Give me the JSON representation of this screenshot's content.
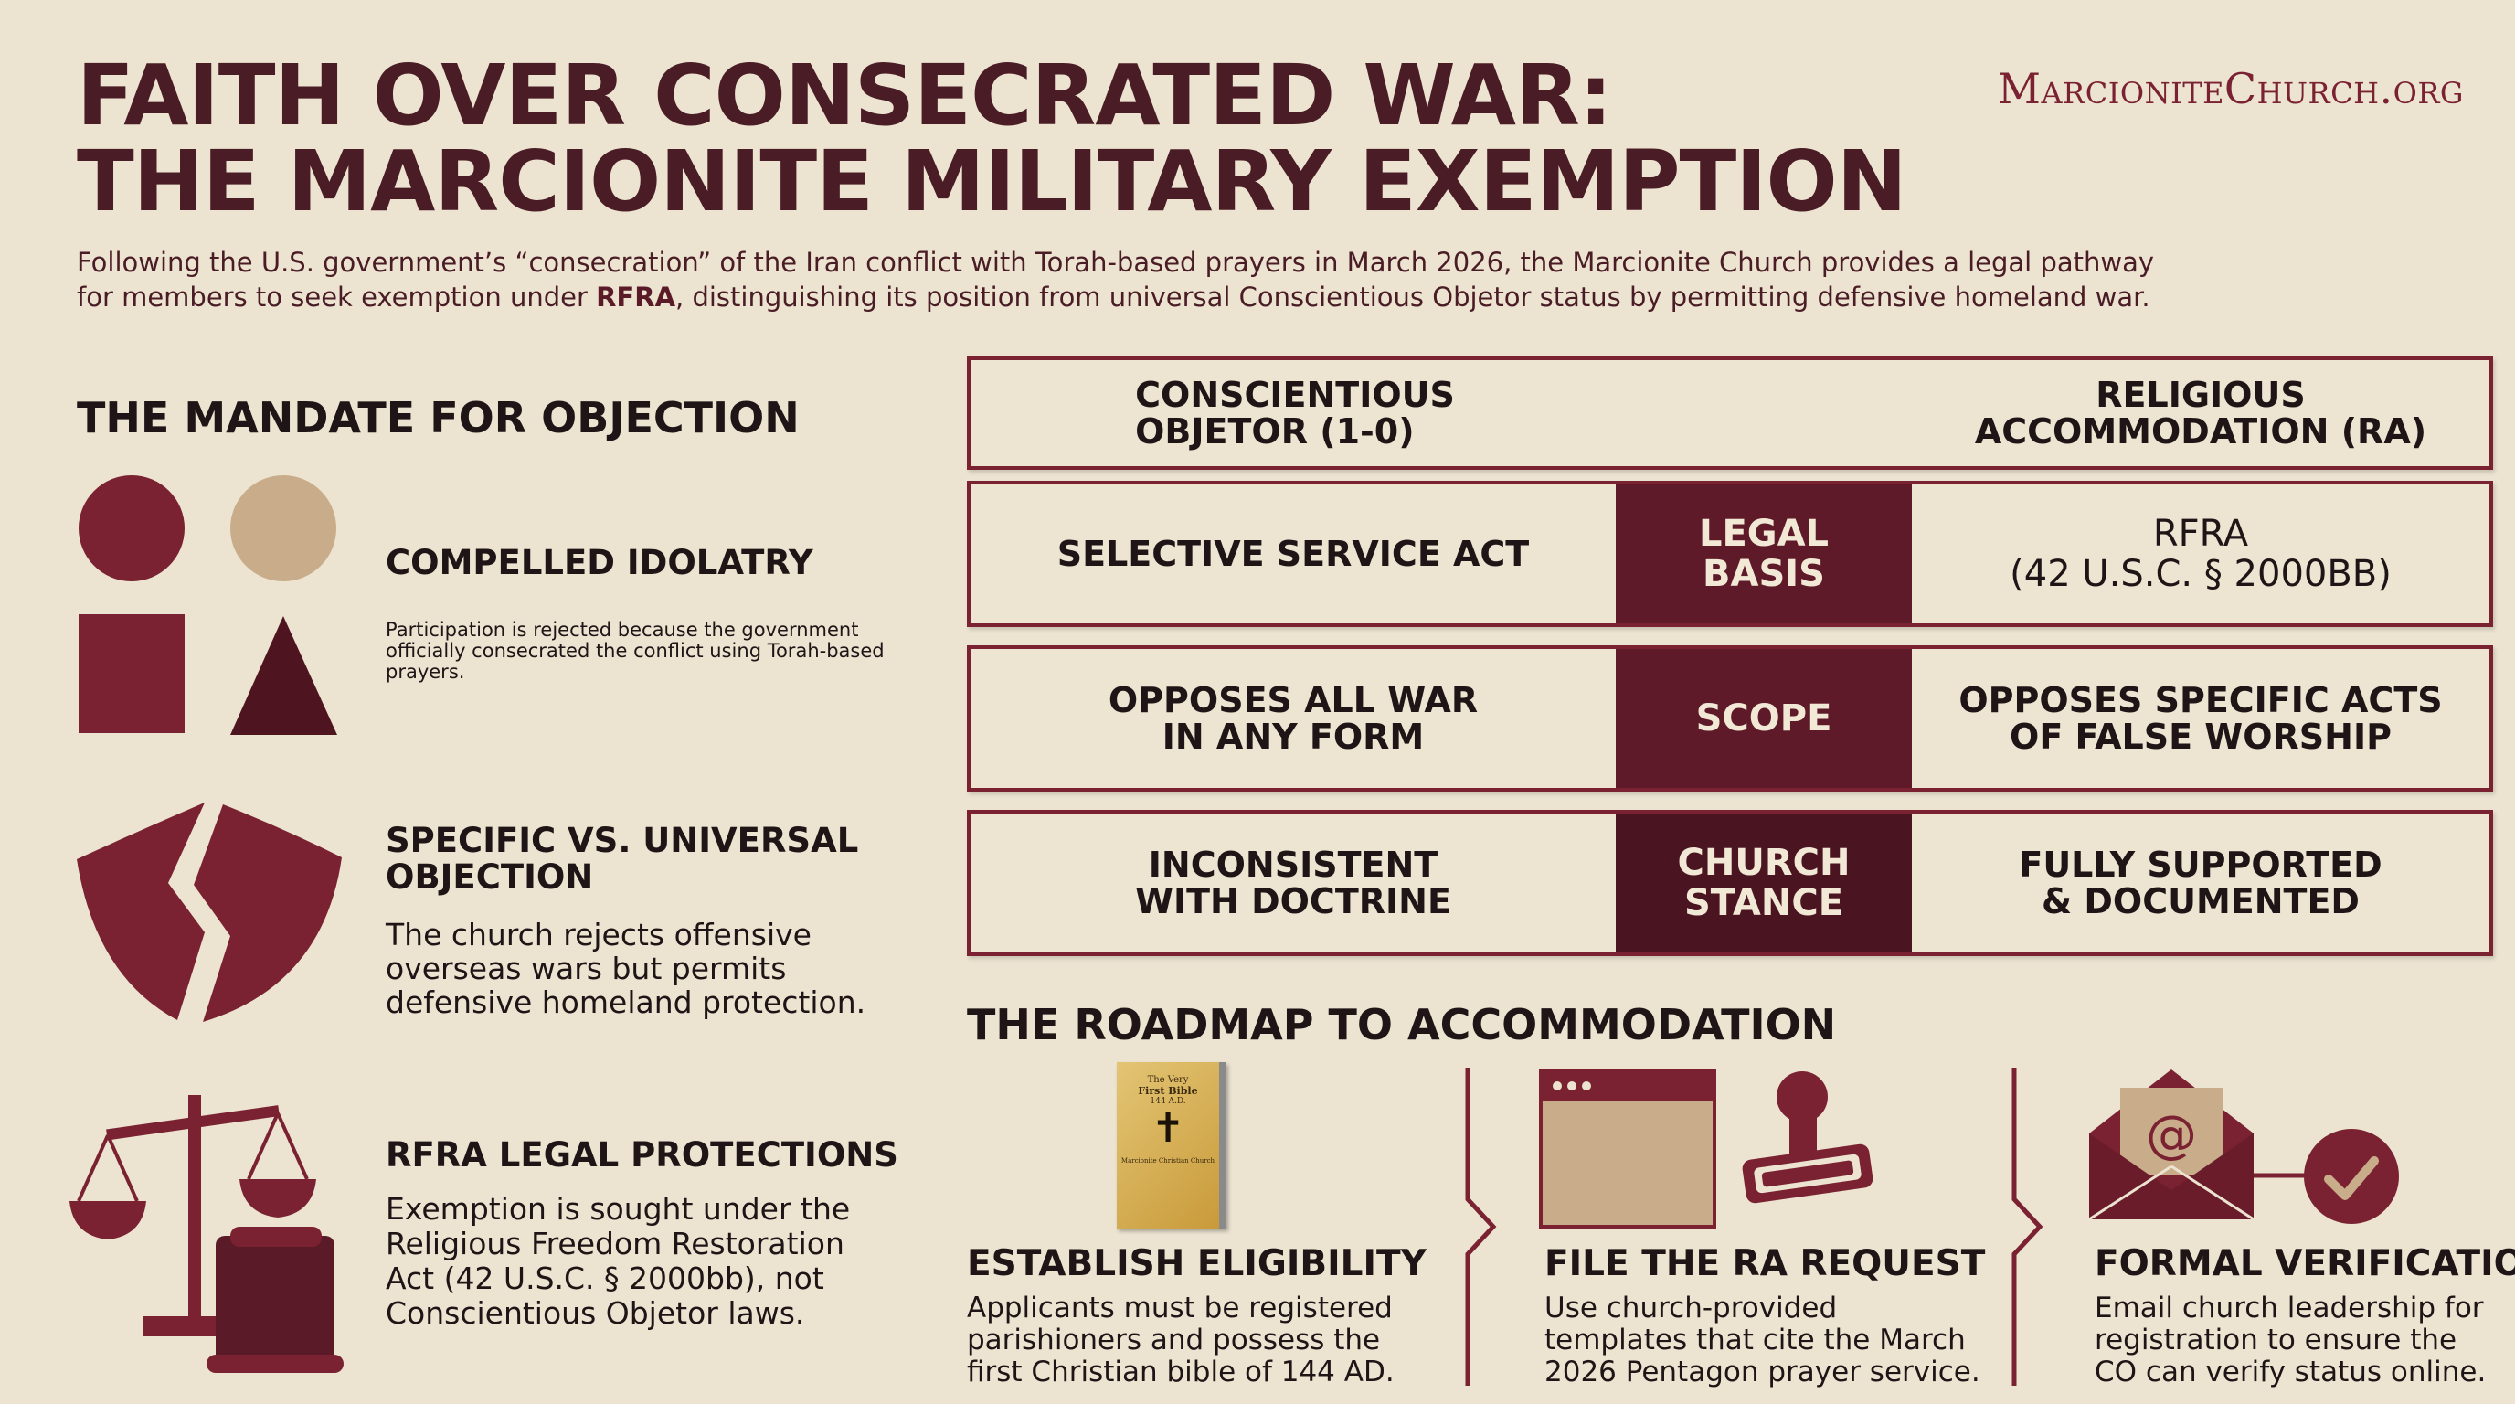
{
  "header": {
    "title_line1": "FAITH OVER CONSECRATED WAR:",
    "title_line2": "THE MARCIONITE MILITARY EXEMPTION",
    "brand": "MarcioniteChurch.org",
    "subtitle_line1": "Following the U.S. government’s “consecration” of the Iran conflict with Torah-based prayers in March 2026, the Marcionite Church provides a legal pathway",
    "subtitle_line2_pre": "for members to seek exemption under ",
    "subtitle_line2_bold": "RFRA",
    "subtitle_line2_post": ", distinguishing its position from universal Conscientious Objetor status by permitting defensive homeland war."
  },
  "mandate": {
    "heading": "THE MANDATE FOR OBJECTION",
    "items": [
      {
        "title": "COMPELLED IDOLATRY",
        "desc": "Participation is rejected because the government officially consecrated the conflict using Torah-based prayers."
      },
      {
        "title": "SPECIFIC VS. UNIVERSAL OBJECTION",
        "desc": "The church rejects offensive overseas wars but permits defensive homeland protection."
      },
      {
        "title": "RFRA LEGAL PROTECTIONS",
        "desc": "Exemption is sought under the Religious Freedom Restoration Act (42 U.S.C. § 2000bb), not Conscientious Objetor laws."
      }
    ]
  },
  "comparison": {
    "left_header_l1": "CONSCIENTIOUS",
    "left_header_l2": "OBJETOR (1-0)",
    "right_header_l1": "RELIGIOUS",
    "right_header_l2": "ACCOMMODATION (RA)",
    "rows": [
      {
        "left_l1": "SELECTIVE SERVICE ACT",
        "left_l2": "",
        "mid_l1": "LEGAL",
        "mid_l2": "BASIS",
        "right_l1": "RFRA",
        "right_l2": "(42 U.S.C. § 2000BB)"
      },
      {
        "left_l1": "OPPOSES ALL WAR",
        "left_l2": "IN ANY FORM",
        "mid_l1": "SCOPE",
        "mid_l2": "",
        "right_l1": "OPPOSES SPECIFIC ACTS",
        "right_l2": "OF FALSE WORSHIP"
      },
      {
        "left_l1": "INCONSISTENT",
        "left_l2": "WITH DOCTRINE",
        "mid_l1": "CHURCH",
        "mid_l2": "STANCE",
        "right_l1": "FULLY SUPPORTED",
        "right_l2": "& DOCUMENTED"
      }
    ]
  },
  "roadmap": {
    "heading": "THE ROADMAP TO ACCOMMODATION",
    "book": {
      "line1": "The Very",
      "line2": "First Bible",
      "line3": "144 A.D.",
      "line4": "Marcionite Christian Church"
    },
    "steps": [
      {
        "title": "ESTABLISH ELIGIBILITY",
        "desc": "Applicants must be registered parishioners and possess the first Christian bible of 144 AD."
      },
      {
        "title": "FILE THE RA REQUEST",
        "desc": "Use church-provided templates that cite the March 2026 Pentagon prayer service."
      },
      {
        "title": "FORMAL VERIFICATION",
        "desc": "Email church leadership for registration to ensure the CO can verify status online."
      }
    ]
  },
  "colors": {
    "maroon": "#7a2232",
    "dark_maroon": "#5e1a28",
    "tan": "#c9ad8a",
    "background": "#ece4d1"
  }
}
